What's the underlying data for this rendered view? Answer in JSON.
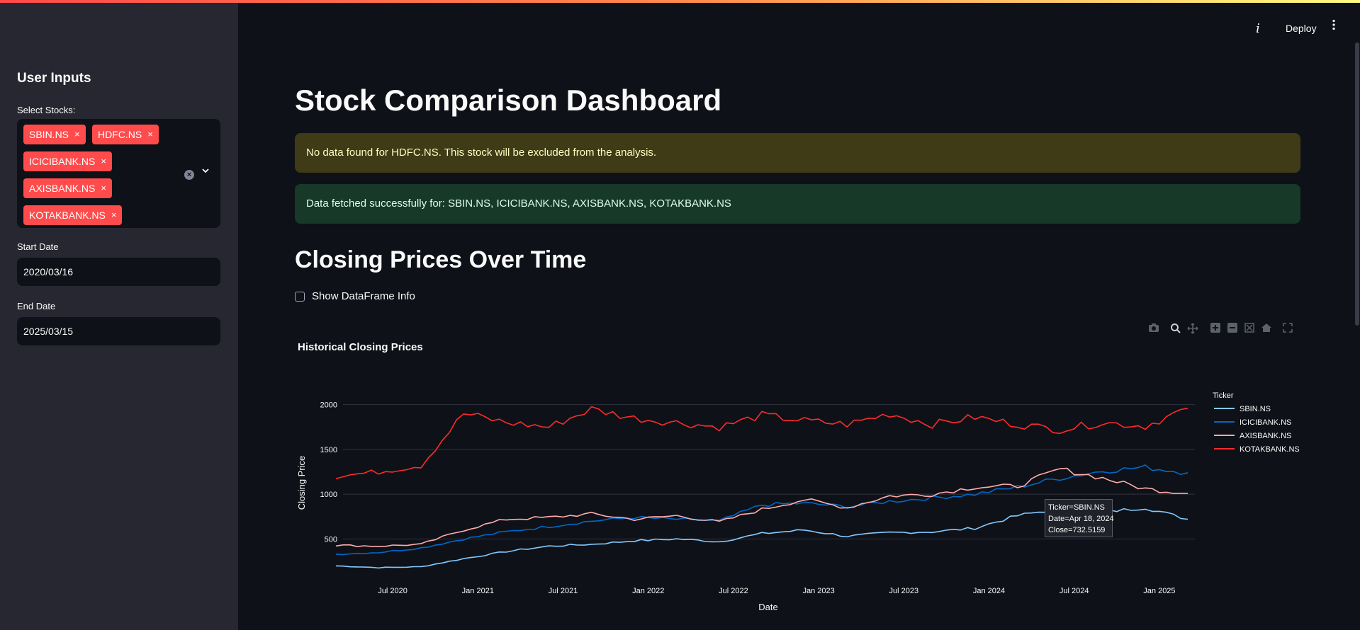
{
  "sidebar": {
    "title": "User Inputs",
    "select_label": "Select Stocks:",
    "selected": [
      "SBIN.NS",
      "HDFC.NS",
      "ICICIBANK.NS",
      "AXISBANK.NS",
      "KOTAKBANK.NS"
    ],
    "remove_glyph": "×",
    "start_label": "Start Date",
    "start_value": "2020/03/16",
    "end_label": "End Date",
    "end_value": "2025/03/15"
  },
  "header": {
    "deploy_label": "Deploy"
  },
  "main": {
    "title": "Stock Comparison Dashboard",
    "warning": "No data found for HDFC.NS. This stock will be excluded from the analysis.",
    "success": "Data fetched successfully for: SBIN.NS, ICICIBANK.NS, AXISBANK.NS, KOTAKBANK.NS",
    "section_title": "Closing Prices Over Time",
    "checkbox_label": "Show DataFrame Info"
  },
  "tooltip": {
    "line1": "Ticker=SBIN.NS",
    "line2": "Date=Apr 18, 2024",
    "line3": "Close=732.5159"
  },
  "chart_data": {
    "type": "line",
    "title": "Historical Closing Prices",
    "xlabel": "Date",
    "ylabel": "Closing Price",
    "legend_title": "Ticker",
    "legend_position": "right",
    "x_ticks": [
      "Jul 2020",
      "Jan 2021",
      "Jul 2021",
      "Jan 2022",
      "Jul 2022",
      "Jan 2023",
      "Jul 2023",
      "Jan 2024",
      "Jul 2024",
      "Jan 2025"
    ],
    "y_ticks": [
      500,
      1000,
      1500,
      2000
    ],
    "ylim": [
      100,
      2250
    ],
    "x": [
      "2020-03",
      "2020-06",
      "2020-09",
      "2020-12",
      "2021-03",
      "2021-06",
      "2021-09",
      "2021-12",
      "2022-03",
      "2022-06",
      "2022-09",
      "2022-12",
      "2023-03",
      "2023-06",
      "2023-09",
      "2023-12",
      "2024-03",
      "2024-06",
      "2024-09",
      "2024-12",
      "2025-03"
    ],
    "series": [
      {
        "name": "SBIN.NS",
        "color": "#83c9ff",
        "values": [
          200,
          180,
          190,
          280,
          360,
          420,
          440,
          480,
          500,
          470,
          560,
          600,
          530,
          570,
          580,
          620,
          760,
          840,
          800,
          850,
          720
        ]
      },
      {
        "name": "ICICIBANK.NS",
        "color": "#0068c9",
        "values": [
          330,
          350,
          400,
          500,
          580,
          640,
          700,
          740,
          720,
          700,
          880,
          900,
          860,
          920,
          960,
          1000,
          1080,
          1180,
          1260,
          1300,
          1240
        ]
      },
      {
        "name": "AXISBANK.NS",
        "color": "#ffabab",
        "values": [
          430,
          420,
          440,
          600,
          720,
          740,
          780,
          720,
          760,
          690,
          830,
          940,
          850,
          980,
          1000,
          1080,
          1090,
          1280,
          1180,
          1060,
          1010
        ]
      },
      {
        "name": "KOTAKBANK.NS",
        "color": "#ff2b2b",
        "values": [
          1200,
          1250,
          1320,
          1900,
          1800,
          1750,
          1950,
          1850,
          1800,
          1750,
          1880,
          1820,
          1780,
          1900,
          1780,
          1860,
          1780,
          1720,
          1800,
          1760,
          1960
        ]
      }
    ]
  }
}
